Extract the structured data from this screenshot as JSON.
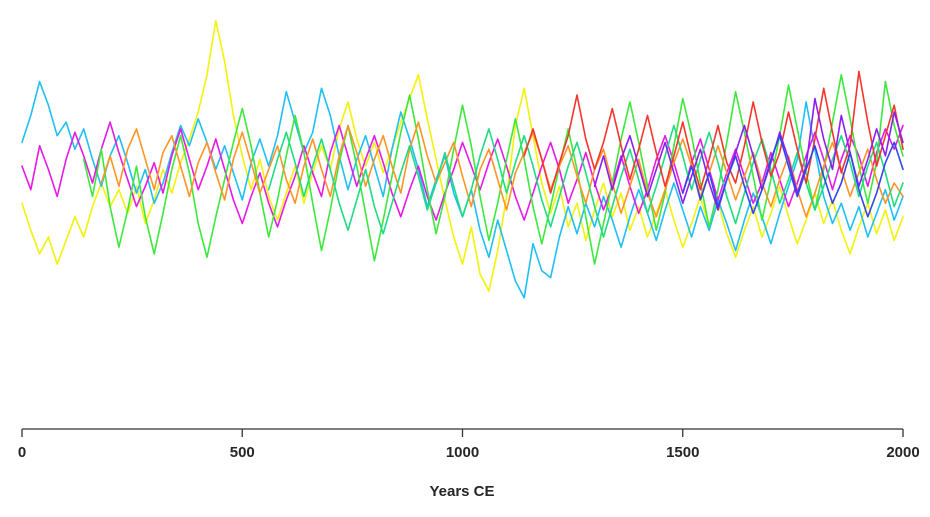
{
  "chart_data": {
    "type": "line",
    "title": "",
    "xlabel": "Years CE",
    "ylabel": "",
    "xlim": [
      0,
      2000
    ],
    "ylim": [
      -3.9,
      4.8
    ],
    "x_ticks": [
      0,
      500,
      1000,
      1500,
      2000
    ],
    "x_tick_labels": [
      "0",
      "500",
      "1000",
      "1500",
      "2000"
    ],
    "y_axis_shown": false,
    "grid": false,
    "legend": null,
    "axis_color": "#333333",
    "step_years": 20,
    "series": [
      {
        "name": "series-yellow",
        "color": "#F2F20A",
        "start_year": 0,
        "values": [
          -0.8,
          -1.6,
          -2.3,
          -1.8,
          -2.6,
          -1.9,
          -1.2,
          -1.8,
          -0.9,
          -0.2,
          -0.9,
          -0.4,
          -1.1,
          -0.3,
          -1.4,
          -0.7,
          0.2,
          -0.5,
          0.4,
          1.1,
          1.9,
          3.0,
          4.6,
          3.4,
          1.8,
          0.6,
          -0.4,
          0.5,
          -0.6,
          -1.3,
          -0.5,
          0.3,
          -0.8,
          0.1,
          0.9,
          0.2,
          1.4,
          2.2,
          1.1,
          0.3,
          1.0,
          0.1,
          0.8,
          1.6,
          2.3,
          3.0,
          1.7,
          0.5,
          -0.7,
          -1.8,
          -2.6,
          -1.5,
          -2.9,
          -3.4,
          -2.2,
          -0.6,
          1.5,
          2.6,
          1.2,
          -0.2,
          -1.1,
          -0.3,
          -1.5,
          -0.8,
          -1.9,
          -1.0,
          -0.2,
          -1.2,
          -0.5,
          -1.6,
          -0.9,
          -1.8,
          -1.1,
          -0.4,
          -1.3,
          -2.1,
          -1.4,
          -0.6,
          -1.5,
          -0.8,
          -1.7,
          -2.4,
          -1.6,
          -0.9,
          -1.8,
          -1.1,
          -0.3,
          -1.2,
          -2.0,
          -1.3,
          -0.5,
          -1.4,
          -0.7,
          -1.6,
          -2.3,
          -1.5,
          -0.8,
          -1.7,
          -1.0,
          -1.9,
          -1.2
        ]
      },
      {
        "name": "series-cyan",
        "color": "#1FBFF5",
        "start_year": 0,
        "values": [
          1.0,
          1.8,
          2.8,
          2.1,
          1.2,
          1.6,
          0.8,
          1.4,
          0.5,
          -0.3,
          0.6,
          1.2,
          0.4,
          -0.5,
          0.2,
          -0.8,
          -0.2,
          0.7,
          1.5,
          0.9,
          1.7,
          1.0,
          0.2,
          0.9,
          0.1,
          -0.7,
          0.4,
          1.1,
          0.3,
          1.2,
          2.5,
          1.6,
          0.7,
          1.3,
          2.6,
          1.8,
          0.6,
          -0.4,
          0.5,
          1.2,
          0.3,
          -0.6,
          0.8,
          1.9,
          1.1,
          0.2,
          -0.9,
          -0.1,
          0.6,
          -0.5,
          -1.2,
          -0.4,
          -1.6,
          -2.4,
          -1.3,
          -2.2,
          -3.1,
          -3.6,
          -2.0,
          -2.8,
          -3.0,
          -1.8,
          -0.9,
          -1.7,
          -0.8,
          -1.5,
          -0.6,
          -1.3,
          -2.1,
          -1.2,
          -0.4,
          -1.1,
          -1.9,
          -1.0,
          -0.2,
          -1.0,
          -1.8,
          -0.9,
          -1.6,
          -0.7,
          -1.4,
          -2.2,
          -1.3,
          -0.5,
          -1.2,
          -2.0,
          -1.1,
          -0.3,
          0.5,
          2.2,
          0.8,
          -0.6,
          -1.4,
          -0.8,
          -1.6,
          -0.9,
          -1.8,
          -1.1,
          -0.4,
          -1.3,
          -0.6
        ]
      },
      {
        "name": "series-magenta",
        "color": "#E619E6",
        "start_year": 0,
        "values": [
          0.3,
          -0.4,
          0.9,
          0.2,
          -0.6,
          0.5,
          1.3,
          0.6,
          -0.2,
          0.8,
          1.6,
          0.7,
          -0.1,
          -0.9,
          -0.3,
          0.4,
          -0.5,
          0.6,
          1.4,
          0.5,
          -0.4,
          0.3,
          1.1,
          0.2,
          -0.7,
          -1.4,
          -0.6,
          0.1,
          -0.8,
          -1.5,
          -0.7,
          0.0,
          0.9,
          0.1,
          -0.6,
          0.7,
          1.5,
          0.6,
          -0.3,
          0.5,
          1.2,
          0.4,
          -0.5,
          -1.2,
          -0.4,
          0.3,
          -0.6,
          -1.3,
          -0.5,
          0.2,
          1.0,
          0.3,
          -0.4,
          0.4,
          1.1,
          0.3,
          -0.6,
          -1.3,
          -0.5,
          0.3,
          1.0,
          0.2,
          -0.8,
          -0.1,
          0.7,
          -0.2,
          -1.0,
          -0.3,
          0.6,
          -0.3,
          -1.1,
          -0.4,
          0.5,
          1.2,
          0.4,
          -0.5,
          0.4,
          1.1,
          0.2,
          -0.7,
          0.1,
          0.8,
          0.0,
          -0.8,
          -0.2,
          0.7,
          -0.1,
          -0.9,
          -0.2,
          0.6,
          1.3,
          0.5,
          -0.4,
          0.5,
          1.2,
          0.6,
          -0.3,
          0.7,
          1.4,
          0.8,
          1.5
        ]
      },
      {
        "name": "series-green",
        "color": "#3DE83D",
        "start_year": 140,
        "values": [
          0.5,
          -0.6,
          0.8,
          -0.9,
          -2.1,
          -1.0,
          0.3,
          -1.2,
          -2.3,
          -1.1,
          0.2,
          1.2,
          0.1,
          -1.4,
          -2.4,
          -1.2,
          -0.1,
          1.0,
          2.0,
          0.9,
          -0.5,
          -1.8,
          -0.7,
          0.6,
          1.8,
          0.7,
          -0.8,
          -2.2,
          -1.0,
          0.4,
          1.5,
          0.3,
          -1.1,
          -2.5,
          -1.3,
          0.0,
          1.3,
          2.4,
          1.1,
          -0.4,
          -1.7,
          -0.6,
          0.8,
          2.1,
          0.9,
          -0.6,
          -1.9,
          -0.8,
          0.5,
          1.7,
          0.5,
          -0.9,
          -2.0,
          -0.9,
          0.3,
          1.4,
          0.2,
          -1.2,
          -2.6,
          -1.4,
          -0.2,
          1.1,
          2.2,
          1.0,
          -0.3,
          -1.6,
          -0.5,
          0.9,
          2.3,
          1.2,
          -0.2,
          -1.5,
          -0.4,
          1.0,
          2.5,
          1.3,
          0.0,
          -1.3,
          -0.1,
          1.2,
          2.7,
          1.4,
          0.1,
          -1.0,
          0.2,
          1.6,
          3.0,
          1.7,
          0.3,
          -0.8,
          0.4,
          2.8,
          1.5,
          0.6
        ]
      },
      {
        "name": "series-orange",
        "color": "#FF9426",
        "start_year": 180,
        "values": [
          -0.2,
          0.6,
          -0.3,
          0.8,
          1.4,
          0.5,
          -0.4,
          0.7,
          1.2,
          0.3,
          -0.6,
          0.4,
          1.0,
          0.1,
          -0.7,
          0.5,
          1.3,
          0.4,
          -0.5,
          0.2,
          0.9,
          -0.1,
          -0.8,
          0.3,
          1.1,
          0.2,
          -0.6,
          0.6,
          1.5,
          0.7,
          -0.3,
          0.5,
          1.2,
          0.3,
          -0.5,
          0.8,
          1.6,
          0.6,
          -0.2,
          0.4,
          1.0,
          0.0,
          -0.9,
          0.2,
          0.8,
          -0.1,
          -1.0,
          0.1,
          0.7,
          1.3,
          0.5,
          -0.4,
          0.3,
          0.9,
          0.0,
          -0.8,
          0.2,
          0.8,
          -0.2,
          -1.1,
          -0.3,
          0.5,
          -0.5,
          -1.2,
          -0.4,
          0.4,
          1.1,
          0.3,
          -0.6,
          0.1,
          0.9,
          0.1,
          -0.7,
          0.0,
          0.7,
          -0.2,
          -0.9,
          -0.1,
          0.6,
          -0.4,
          -1.2,
          -0.5,
          0.3,
          1.0,
          0.2,
          -0.6,
          0.1,
          0.8,
          -0.1,
          -0.8,
          -0.2,
          -0.6
        ]
      },
      {
        "name": "series-springgreen",
        "color": "#1EDC82",
        "start_year": 560,
        "values": [
          -0.4,
          0.5,
          1.3,
          0.4,
          -0.6,
          0.3,
          1.1,
          0.2,
          -0.8,
          -1.6,
          -0.7,
          0.2,
          -0.9,
          -1.7,
          -0.8,
          0.1,
          0.9,
          0.0,
          -1.0,
          -0.2,
          0.7,
          -0.3,
          -1.2,
          -0.4,
          0.6,
          1.4,
          0.5,
          -0.5,
          0.4,
          1.2,
          0.3,
          -0.7,
          -1.5,
          -0.6,
          0.3,
          1.0,
          0.1,
          -0.9,
          -1.8,
          -0.9,
          0.0,
          0.8,
          -0.1,
          -1.1,
          -0.3,
          0.6,
          1.5,
          0.6,
          -0.4,
          0.5,
          1.3,
          0.4,
          -0.6,
          -1.4,
          -0.5,
          0.4,
          1.1,
          0.2,
          -0.8,
          -0.1,
          0.7,
          -0.2,
          -1.0,
          -0.3,
          0.5,
          1.2,
          0.4,
          -0.6,
          0.3,
          1.0,
          0.1,
          -0.9,
          -0.2
        ]
      },
      {
        "name": "series-red",
        "color": "#F5352B",
        "start_year": 1140,
        "values": [
          0.6,
          1.4,
          0.5,
          -0.5,
          0.4,
          1.2,
          2.4,
          1.1,
          0.2,
          1.0,
          2.0,
          0.9,
          -0.1,
          0.8,
          1.8,
          0.7,
          -0.3,
          0.6,
          1.6,
          0.5,
          -0.4,
          0.5,
          1.5,
          0.4,
          -0.2,
          0.9,
          2.2,
          1.0,
          0.0,
          0.7,
          1.9,
          0.8,
          -0.2,
          1.1,
          2.6,
          1.3,
          0.1,
          0.9,
          3.1,
          1.6,
          0.3,
          1.2,
          2.1,
          0.8
        ]
      },
      {
        "name": "series-purple",
        "color": "#8C1FF0",
        "start_year": 1300,
        "values": [
          -0.3,
          0.6,
          -0.4,
          0.5,
          1.2,
          0.3,
          -0.6,
          0.2,
          1.0,
          0.1,
          -0.8,
          0.0,
          0.8,
          -0.2,
          -1.0,
          -0.1,
          0.7,
          1.5,
          0.6,
          -0.4,
          0.4,
          1.3,
          0.5,
          -0.5,
          0.3,
          2.3,
          1.1,
          0.2,
          1.8,
          0.7,
          -0.3,
          0.5,
          1.4,
          0.6,
          1.9,
          1.0
        ]
      },
      {
        "name": "series-blue",
        "color": "#3246EB",
        "start_year": 1500,
        "values": [
          -0.5,
          0.3,
          -0.7,
          0.1,
          -0.9,
          -0.1,
          0.6,
          -0.3,
          -1.1,
          -0.4,
          0.5,
          1.2,
          0.3,
          -0.6,
          0.2,
          0.9,
          0.0,
          -0.8,
          -0.2,
          0.7,
          -0.4,
          -1.2,
          -0.5,
          0.4,
          1.0,
          0.2
        ]
      }
    ]
  }
}
